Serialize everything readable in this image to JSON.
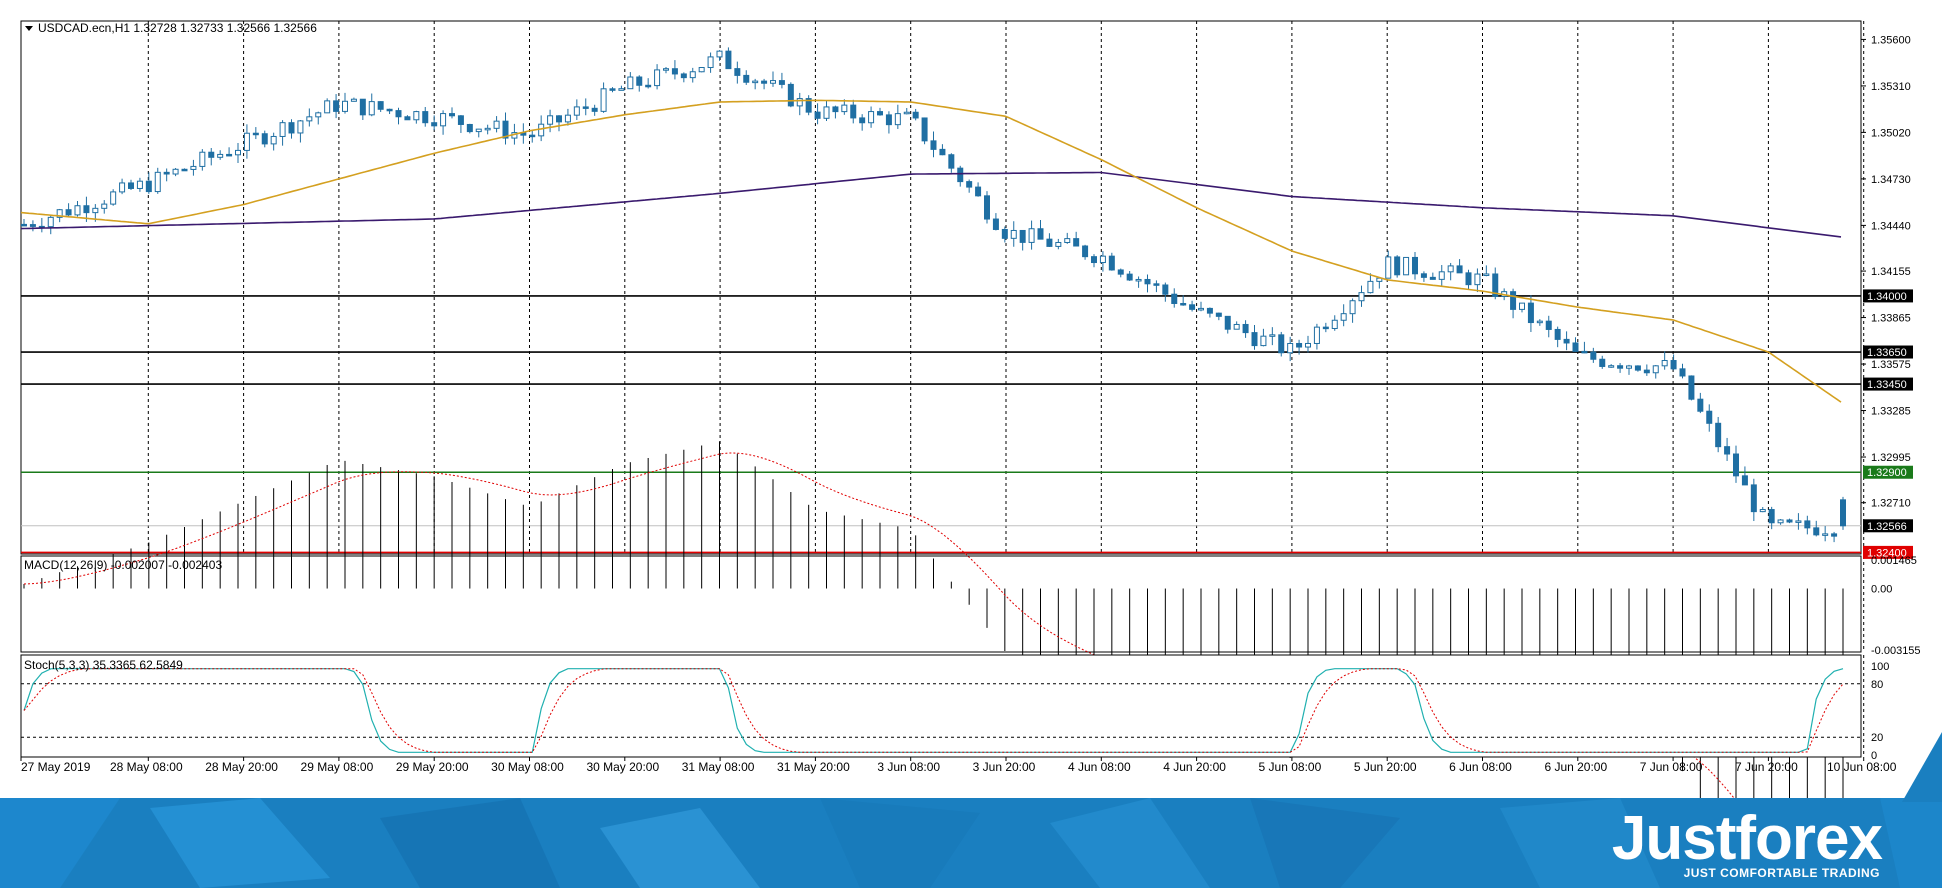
{
  "header": {
    "symbol_line": "USDCAD.ecn,H1  1.32728 1.32733 1.32566 1.32566"
  },
  "price_axis": {
    "ticks": [
      "1.35600",
      "1.35310",
      "1.35020",
      "1.34730",
      "1.34440",
      "1.34155",
      "1.33865",
      "1.33575",
      "1.33285",
      "1.32995",
      "1.32710"
    ]
  },
  "levels": [
    {
      "label": "1.34000",
      "value": 1.34,
      "color": "#000000",
      "text_color": "#ffffff",
      "bg": "#000000"
    },
    {
      "label": "1.33650",
      "value": 1.3365,
      "color": "#000000",
      "text_color": "#ffffff",
      "bg": "#000000"
    },
    {
      "label": "1.33450",
      "value": 1.3345,
      "color": "#000000",
      "text_color": "#ffffff",
      "bg": "#000000"
    },
    {
      "label": "1.32900",
      "value": 1.329,
      "color": "#1a7a1a",
      "text_color": "#ffffff",
      "bg": "#1a7a1a"
    },
    {
      "label": "1.32566",
      "value": 1.32566,
      "color": "#c0c0c0",
      "text_color": "#ffffff",
      "bg": "#000000"
    },
    {
      "label": "1.32400",
      "value": 1.324,
      "color": "#e00000",
      "text_color": "#ffffff",
      "bg": "#e00000"
    }
  ],
  "time_axis": {
    "labels": [
      "27 May 2019",
      "28 May 08:00",
      "28 May 20:00",
      "29 May 08:00",
      "29 May 20:00",
      "30 May 08:00",
      "30 May 20:00",
      "31 May 08:00",
      "31 May 20:00",
      "3 Jun 08:00",
      "3 Jun 20:00",
      "4 Jun 08:00",
      "4 Jun 20:00",
      "5 Jun 08:00",
      "5 Jun 20:00",
      "6 Jun 08:00",
      "6 Jun 20:00",
      "7 Jun 08:00",
      "7 Jun 20:00",
      "10 Jun 08:00"
    ]
  },
  "macd": {
    "label": "MACD(12,26,9) -0.002007 -0.002403",
    "ticks": [
      "0.001465",
      "0.00",
      "-0.003155"
    ]
  },
  "stoch": {
    "label": "Stoch(5,3,3) 35.3365 62.5849",
    "ticks": [
      "100",
      "80",
      "20",
      "0"
    ]
  },
  "brand": {
    "name": "Justforex",
    "tagline": "JUST COMFORTABLE TRADING"
  },
  "colors": {
    "bull_candle": "#ffffff",
    "bear_candle": "#1f6fa3",
    "candle_outline": "#1f6fa3",
    "ma_fast": "#d4a020",
    "ma_slow": "#3a1a6e",
    "macd_hist": "#000000",
    "macd_signal": "#e00000",
    "stoch_main": "#20b0b0",
    "stoch_signal": "#e00000",
    "banner": "#1a7fc0"
  },
  "chart_data": {
    "type": "candlestick",
    "symbol": "USDCAD.ecn",
    "timeframe": "H1",
    "ohlc_current": {
      "open": 1.32728,
      "high": 1.32733,
      "low": 1.32566,
      "close": 1.32566
    },
    "ylim": [
      1.3234,
      1.3575
    ],
    "key_points": [
      {
        "t": "27 May 2019",
        "close": 1.3444
      },
      {
        "t": "28 May 08:00",
        "close": 1.347
      },
      {
        "t": "28 May 20:00",
        "close": 1.3495
      },
      {
        "t": "29 May 08:00",
        "close": 1.352
      },
      {
        "t": "29 May 20:00",
        "close": 1.3512
      },
      {
        "t": "30 May 08:00",
        "close": 1.35
      },
      {
        "t": "30 May 20:00",
        "close": 1.353
      },
      {
        "t": "31 May 08:00",
        "close": 1.3548
      },
      {
        "t": "31 May 20:00",
        "close": 1.3515
      },
      {
        "t": "3 Jun 08:00",
        "close": 1.351
      },
      {
        "t": "3 Jun 20:00",
        "close": 1.344
      },
      {
        "t": "4 Jun 08:00",
        "close": 1.3425
      },
      {
        "t": "4 Jun 20:00",
        "close": 1.339
      },
      {
        "t": "5 Jun 08:00",
        "close": 1.3365
      },
      {
        "t": "5 Jun 20:00",
        "close": 1.342
      },
      {
        "t": "6 Jun 08:00",
        "close": 1.341
      },
      {
        "t": "6 Jun 20:00",
        "close": 1.3362
      },
      {
        "t": "7 Jun 08:00",
        "close": 1.3355
      },
      {
        "t": "7 Jun 20:00",
        "close": 1.3255
      },
      {
        "t": "10 Jun 08:00",
        "close": 1.32566
      }
    ],
    "ma_fast_points": [
      {
        "t": "27 May 2019",
        "v": 1.3452
      },
      {
        "t": "28 May 08:00",
        "v": 1.3445
      },
      {
        "t": "28 May 20:00",
        "v": 1.3457
      },
      {
        "t": "29 May 08:00",
        "v": 1.3473
      },
      {
        "t": "29 May 20:00",
        "v": 1.3489
      },
      {
        "t": "30 May 08:00",
        "v": 1.3503
      },
      {
        "t": "30 May 20:00",
        "v": 1.3513
      },
      {
        "t": "31 May 08:00",
        "v": 1.3521
      },
      {
        "t": "31 May 20:00",
        "v": 1.3522
      },
      {
        "t": "3 Jun 08:00",
        "v": 1.3521
      },
      {
        "t": "3 Jun 20:00",
        "v": 1.3512
      },
      {
        "t": "4 Jun 08:00",
        "v": 1.3485
      },
      {
        "t": "4 Jun 20:00",
        "v": 1.3455
      },
      {
        "t": "5 Jun 08:00",
        "v": 1.3428
      },
      {
        "t": "5 Jun 20:00",
        "v": 1.341
      },
      {
        "t": "6 Jun 08:00",
        "v": 1.3403
      },
      {
        "t": "6 Jun 20:00",
        "v": 1.3393
      },
      {
        "t": "7 Jun 08:00",
        "v": 1.3385
      },
      {
        "t": "7 Jun 20:00",
        "v": 1.3365
      },
      {
        "t": "10 Jun 08:00",
        "v": 1.3324
      }
    ],
    "ma_slow_points": [
      {
        "t": "27 May 2019",
        "v": 1.3442
      },
      {
        "t": "29 May 20:00",
        "v": 1.3448
      },
      {
        "t": "31 May 08:00",
        "v": 1.3464
      },
      {
        "t": "3 Jun 08:00",
        "v": 1.3476
      },
      {
        "t": "4 Jun 08:00",
        "v": 1.3477
      },
      {
        "t": "5 Jun 08:00",
        "v": 1.3462
      },
      {
        "t": "6 Jun 08:00",
        "v": 1.3455
      },
      {
        "t": "7 Jun 08:00",
        "v": 1.345
      },
      {
        "t": "10 Jun 08:00",
        "v": 1.3435
      }
    ]
  }
}
